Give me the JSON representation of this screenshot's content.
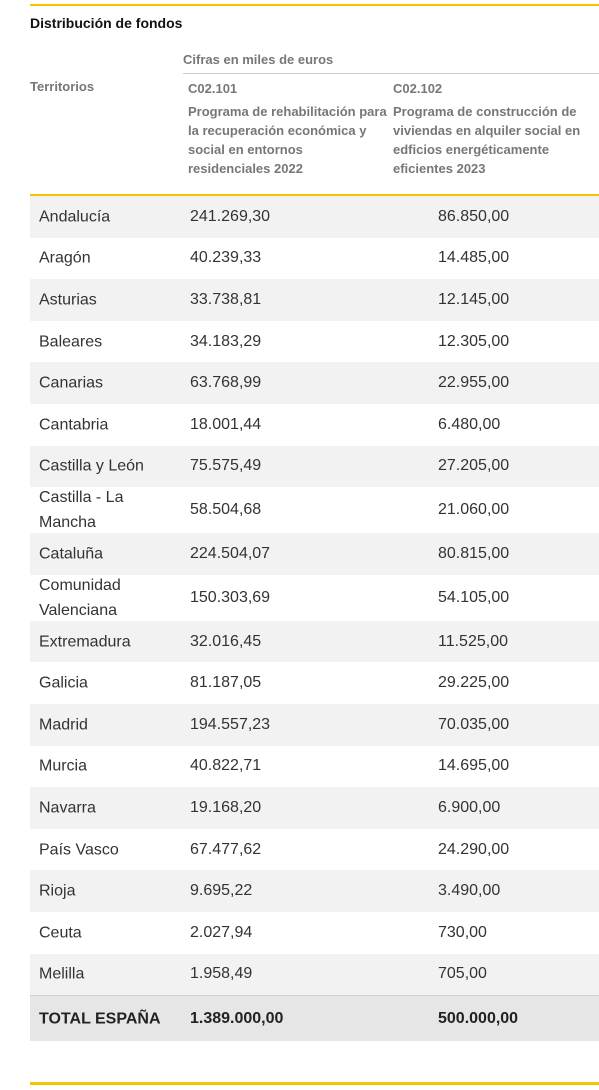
{
  "title": "Distribución de fondos",
  "units": "Cifras en miles de euros",
  "header": {
    "territorios": "Territorios",
    "col1_code": "C02.101",
    "col1_desc": "Programa de rehabilitación para la recuperación económica y social en entornos residenciales 2022",
    "col2_code": "C02.102",
    "col2_desc": "Programa de construcción de viviendas en alquiler social en edficios energéticamente eficientes 2023"
  },
  "rows": [
    {
      "territorio": "Andalucía",
      "c02_101": "241.269,30",
      "c02_102": "86.850,00"
    },
    {
      "territorio": "Aragón",
      "c02_101": "40.239,33",
      "c02_102": "14.485,00"
    },
    {
      "territorio": "Asturias",
      "c02_101": "33.738,81",
      "c02_102": "12.145,00"
    },
    {
      "territorio": "Baleares",
      "c02_101": "34.183,29",
      "c02_102": "12.305,00"
    },
    {
      "territorio": "Canarias",
      "c02_101": "63.768,99",
      "c02_102": "22.955,00"
    },
    {
      "territorio": "Cantabria",
      "c02_101": "18.001,44",
      "c02_102": "6.480,00"
    },
    {
      "territorio": "Castilla y León",
      "c02_101": "75.575,49",
      "c02_102": "27.205,00"
    },
    {
      "territorio": "Castilla - La Mancha",
      "c02_101": "58.504,68",
      "c02_102": "21.060,00"
    },
    {
      "territorio": "Cataluña",
      "c02_101": "224.504,07",
      "c02_102": "80.815,00"
    },
    {
      "territorio": "Comunidad Valenciana",
      "c02_101": "150.303,69",
      "c02_102": "54.105,00"
    },
    {
      "territorio": "Extremadura",
      "c02_101": "32.016,45",
      "c02_102": "11.525,00"
    },
    {
      "territorio": "Galicia",
      "c02_101": "81.187,05",
      "c02_102": "29.225,00"
    },
    {
      "territorio": "Madrid",
      "c02_101": "194.557,23",
      "c02_102": "70.035,00"
    },
    {
      "territorio": "Murcia",
      "c02_101": "40.822,71",
      "c02_102": "14.695,00"
    },
    {
      "territorio": "Navarra",
      "c02_101": "19.168,20",
      "c02_102": "6.900,00"
    },
    {
      "territorio": "País Vasco",
      "c02_101": "67.477,62",
      "c02_102": "24.290,00"
    },
    {
      "territorio": "Rioja",
      "c02_101": "9.695,22",
      "c02_102": "3.490,00"
    },
    {
      "territorio": "Ceuta",
      "c02_101": "2.027,94",
      "c02_102": "730,00"
    },
    {
      "territorio": "Melilla",
      "c02_101": "1.958,49",
      "c02_102": "705,00"
    }
  ],
  "total": {
    "territorio": "TOTAL ESPAÑA",
    "c02_101": "1.389.000,00",
    "c02_102": "500.000,00"
  },
  "colors": {
    "accent": "#f2c500",
    "row_alt": "#f2f2f2",
    "total_bg": "#e6e6e6"
  }
}
